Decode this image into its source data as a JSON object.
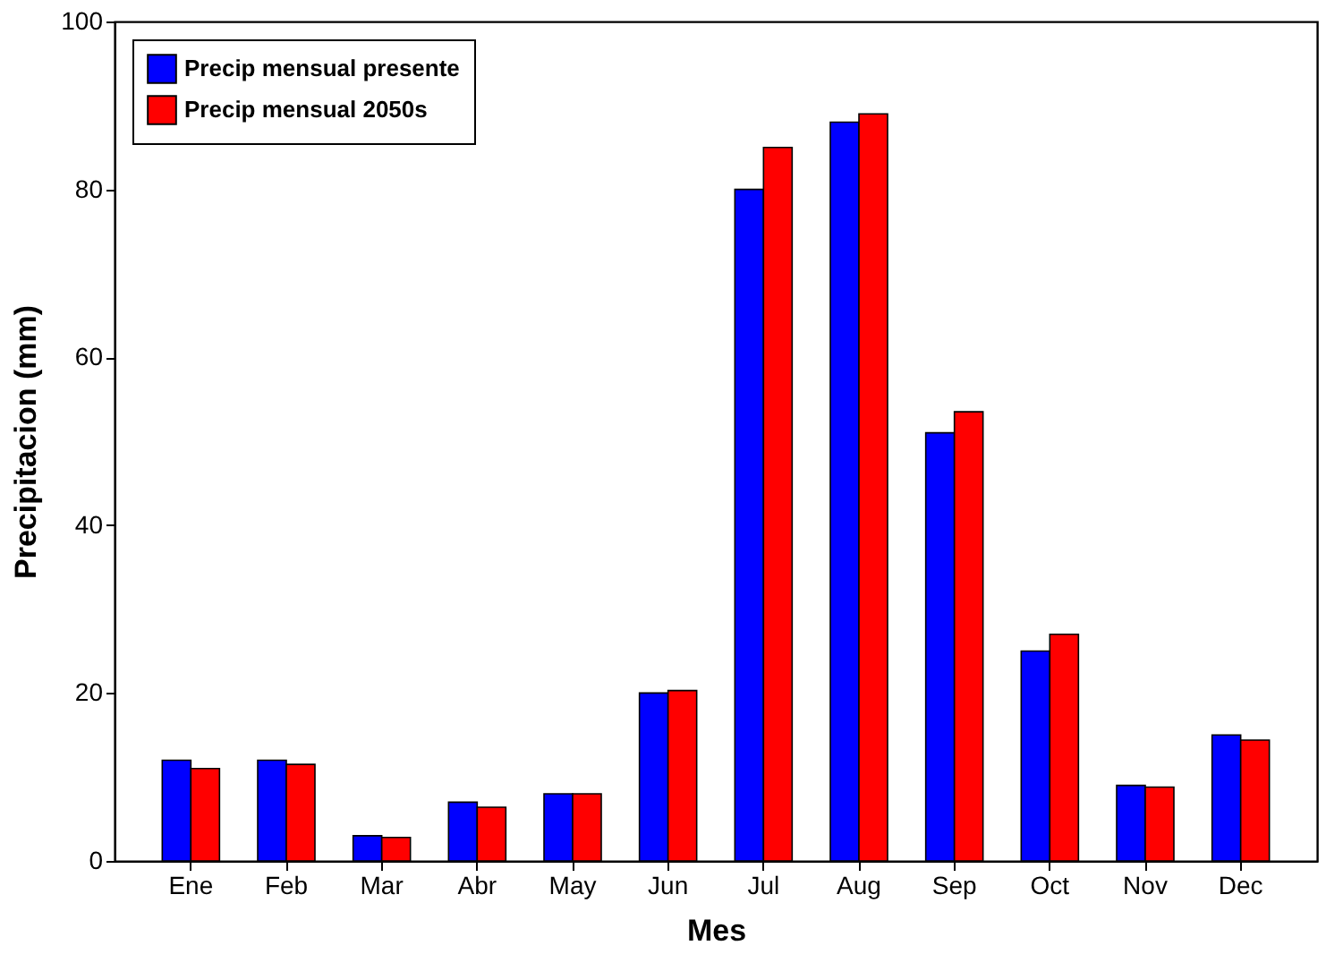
{
  "chart_data": {
    "type": "bar",
    "xlabel": "Mes",
    "ylabel": "Precipitacion (mm)",
    "categories": [
      "Ene",
      "Feb",
      "Mar",
      "Abr",
      "May",
      "Jun",
      "Jul",
      "Aug",
      "Sep",
      "Oct",
      "Nov",
      "Dec"
    ],
    "series": [
      {
        "name": "Precip mensual presente",
        "color": "#0000ff",
        "values": [
          12,
          12,
          3,
          7,
          8,
          20,
          80,
          88,
          51,
          25,
          9,
          15
        ]
      },
      {
        "name": "Precip mensual 2050s",
        "color": "#ff0000",
        "values": [
          11,
          11.5,
          2.8,
          6.4,
          8,
          20.3,
          85,
          89,
          53.5,
          27,
          8.8,
          14.4
        ]
      }
    ],
    "ylim": [
      0,
      100
    ],
    "yticks": [
      0,
      20,
      40,
      60,
      80,
      100
    ],
    "grid": false,
    "legend": "top left"
  }
}
